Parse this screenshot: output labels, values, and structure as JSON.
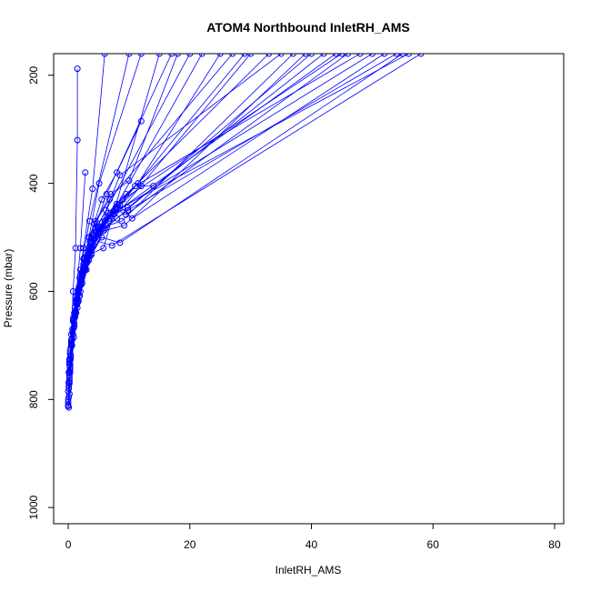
{
  "chart_data": {
    "type": "line",
    "title": "ATOM4 Northbound InletRH_AMS",
    "xlabel": "InletRH_AMS",
    "ylabel": "Pressure (mbar)",
    "xlim": [
      -2.4,
      81.5
    ],
    "ylim": [
      1030,
      160
    ],
    "y_reversed": true,
    "x_ticks": [
      0,
      20,
      40,
      60,
      80
    ],
    "x_tick_labels": [
      "0",
      "20",
      "40",
      "60",
      "80"
    ],
    "y_ticks": [
      200,
      400,
      600,
      800,
      1000
    ],
    "y_tick_labels": [
      "200",
      "400",
      "600",
      "800",
      "1000"
    ],
    "grid": false,
    "legend": "none",
    "series_color": "#0000ff",
    "markers": "open-circle",
    "series": [
      {
        "name": "",
        "x": [
          0.1,
          0.2,
          0.3,
          0.5,
          0.8,
          1.2,
          1.5,
          1.5
        ],
        "y": [
          815,
          790,
          740,
          680,
          600,
          520,
          320,
          188
        ]
      },
      {
        "name": "",
        "x": [
          0.0,
          0.2,
          0.6,
          1.2,
          2.0,
          2.8
        ],
        "y": [
          810,
          770,
          700,
          620,
          520,
          380
        ]
      },
      {
        "name": "",
        "x": [
          0.1,
          0.3,
          0.8,
          1.5,
          2.5,
          4.0,
          6.0
        ],
        "y": [
          795,
          750,
          680,
          600,
          520,
          410,
          160
        ]
      },
      {
        "name": "",
        "x": [
          0.0,
          0.4,
          1.0,
          2.0,
          3.5,
          5.5,
          8.0,
          12.0
        ],
        "y": [
          785,
          720,
          650,
          580,
          500,
          430,
          380,
          285
        ]
      },
      {
        "name": "",
        "x": [
          0.2,
          0.6,
          1.5,
          3.0,
          5.0,
          8.5,
          12.0,
          14.0
        ],
        "y": [
          760,
          700,
          630,
          560,
          490,
          440,
          405,
          405
        ]
      },
      {
        "name": "",
        "x": [
          0.1,
          0.5,
          1.2,
          2.5,
          4.5,
          7.0,
          10.0,
          18.0
        ],
        "y": [
          770,
          690,
          610,
          540,
          470,
          420,
          395,
          160
        ]
      },
      {
        "name": "",
        "x": [
          0.3,
          1.0,
          2.2,
          4.0,
          6.5,
          9.5,
          11.5,
          25.0
        ],
        "y": [
          740,
          660,
          580,
          510,
          455,
          420,
          400,
          160
        ]
      },
      {
        "name": "",
        "x": [
          0.2,
          0.8,
          2.0,
          3.8,
          6.2,
          8.5,
          35.0
        ],
        "y": [
          730,
          650,
          570,
          500,
          450,
          385,
          160
        ]
      },
      {
        "name": "",
        "x": [
          0.4,
          1.3,
          2.8,
          5.0,
          8.0,
          40.0
        ],
        "y": [
          720,
          640,
          560,
          495,
          465,
          160
        ]
      },
      {
        "name": "",
        "x": [
          0.1,
          0.7,
          1.8,
          3.5,
          6.0,
          9.0,
          45.0
        ],
        "y": [
          750,
          670,
          590,
          520,
          470,
          430,
          160
        ]
      },
      {
        "name": "",
        "x": [
          0.3,
          1.1,
          2.5,
          4.5,
          7.5,
          50.0
        ],
        "y": [
          710,
          630,
          550,
          490,
          455,
          160
        ]
      },
      {
        "name": "",
        "x": [
          0.5,
          1.6,
          3.2,
          5.5,
          8.5,
          55.0
        ],
        "y": [
          700,
          620,
          545,
          500,
          510,
          160
        ]
      },
      {
        "name": "",
        "x": [
          0.2,
          1.0,
          2.2,
          4.2,
          7.2,
          58.0
        ],
        "y": [
          725,
          645,
          565,
          505,
          515,
          160
        ]
      },
      {
        "name": "",
        "x": [
          0.6,
          1.8,
          3.6,
          6.0,
          30.0
        ],
        "y": [
          690,
          610,
          535,
          485,
          160
        ]
      },
      {
        "name": "",
        "x": [
          0.1,
          0.6,
          1.4,
          2.8,
          4.8,
          20.0
        ],
        "y": [
          780,
          700,
          620,
          545,
          480,
          160
        ]
      },
      {
        "name": "",
        "x": [
          0.2,
          0.9,
          2.0,
          3.8,
          5.8,
          15.0
        ],
        "y": [
          765,
          685,
          600,
          530,
          520,
          160
        ]
      },
      {
        "name": "",
        "x": [
          0.0,
          0.4,
          1.0,
          2.0,
          3.5,
          10.0
        ],
        "y": [
          800,
          720,
          640,
          560,
          470,
          160
        ]
      },
      {
        "name": "",
        "x": [
          0.3,
          1.2,
          2.6,
          4.6,
          7.8,
          11.0,
          48.0
        ],
        "y": [
          715,
          635,
          555,
          490,
          445,
          405,
          160
        ]
      },
      {
        "name": "",
        "x": [
          0.4,
          1.4,
          3.0,
          5.2,
          8.2,
          10.5,
          52.0
        ],
        "y": [
          705,
          625,
          548,
          485,
          440,
          465,
          160
        ]
      },
      {
        "name": "",
        "x": [
          0.2,
          0.8,
          1.9,
          3.6,
          6.4,
          9.8,
          42.0
        ],
        "y": [
          735,
          655,
          575,
          508,
          462,
          445,
          160
        ]
      },
      {
        "name": "",
        "x": [
          0.5,
          1.5,
          3.1,
          5.4,
          8.8,
          37.0
        ],
        "y": [
          695,
          615,
          540,
          482,
          470,
          160
        ]
      },
      {
        "name": "",
        "x": [
          0.1,
          0.5,
          1.3,
          2.6,
          4.3,
          6.8,
          27.0
        ],
        "y": [
          775,
          695,
          615,
          538,
          475,
          430,
          160
        ]
      },
      {
        "name": "",
        "x": [
          0.3,
          1.0,
          2.3,
          4.1,
          7.0,
          22.0
        ],
        "y": [
          745,
          665,
          585,
          515,
          460,
          160
        ]
      },
      {
        "name": "",
        "x": [
          0.0,
          0.3,
          0.9,
          1.9,
          3.4,
          5.1,
          12.0
        ],
        "y": [
          812,
          735,
          655,
          575,
          500,
          400,
          160
        ]
      },
      {
        "name": "",
        "x": [
          0.2,
          0.7,
          1.7,
          3.3,
          5.6,
          8.0,
          33.0
        ],
        "y": [
          755,
          675,
          595,
          525,
          472,
          438,
          160
        ]
      },
      {
        "name": "",
        "x": [
          0.4,
          1.2,
          2.7,
          4.9,
          7.9,
          9.5,
          46.0
        ],
        "y": [
          718,
          638,
          558,
          493,
          448,
          458,
          160
        ]
      },
      {
        "name": "",
        "x": [
          0.1,
          0.6,
          1.5,
          3.0,
          5.0,
          7.5,
          56.0
        ],
        "y": [
          768,
          688,
          608,
          535,
          482,
          452,
          160
        ]
      },
      {
        "name": "",
        "x": [
          0.3,
          1.1,
          2.4,
          4.4,
          7.4,
          44.0
        ],
        "y": [
          728,
          648,
          568,
          502,
          457,
          160
        ]
      },
      {
        "name": "",
        "x": [
          0.5,
          1.7,
          3.4,
          5.8,
          9.2,
          39.0
        ],
        "y": [
          698,
          618,
          542,
          488,
          478,
          160
        ]
      },
      {
        "name": "",
        "x": [
          0.2,
          0.9,
          2.1,
          3.9,
          6.6,
          29.0
        ],
        "y": [
          748,
          668,
          588,
          518,
          466,
          160
        ]
      },
      {
        "name": "",
        "x": [
          0.0,
          0.4,
          1.1,
          2.3,
          4.0,
          6.3,
          17.0
        ],
        "y": [
          805,
          725,
          645,
          565,
          495,
          420,
          160
        ]
      },
      {
        "name": "",
        "x": [
          0.6,
          1.9,
          3.8,
          6.3,
          9.8,
          54.0
        ],
        "y": [
          688,
          608,
          532,
          478,
          450,
          160
        ]
      }
    ]
  }
}
